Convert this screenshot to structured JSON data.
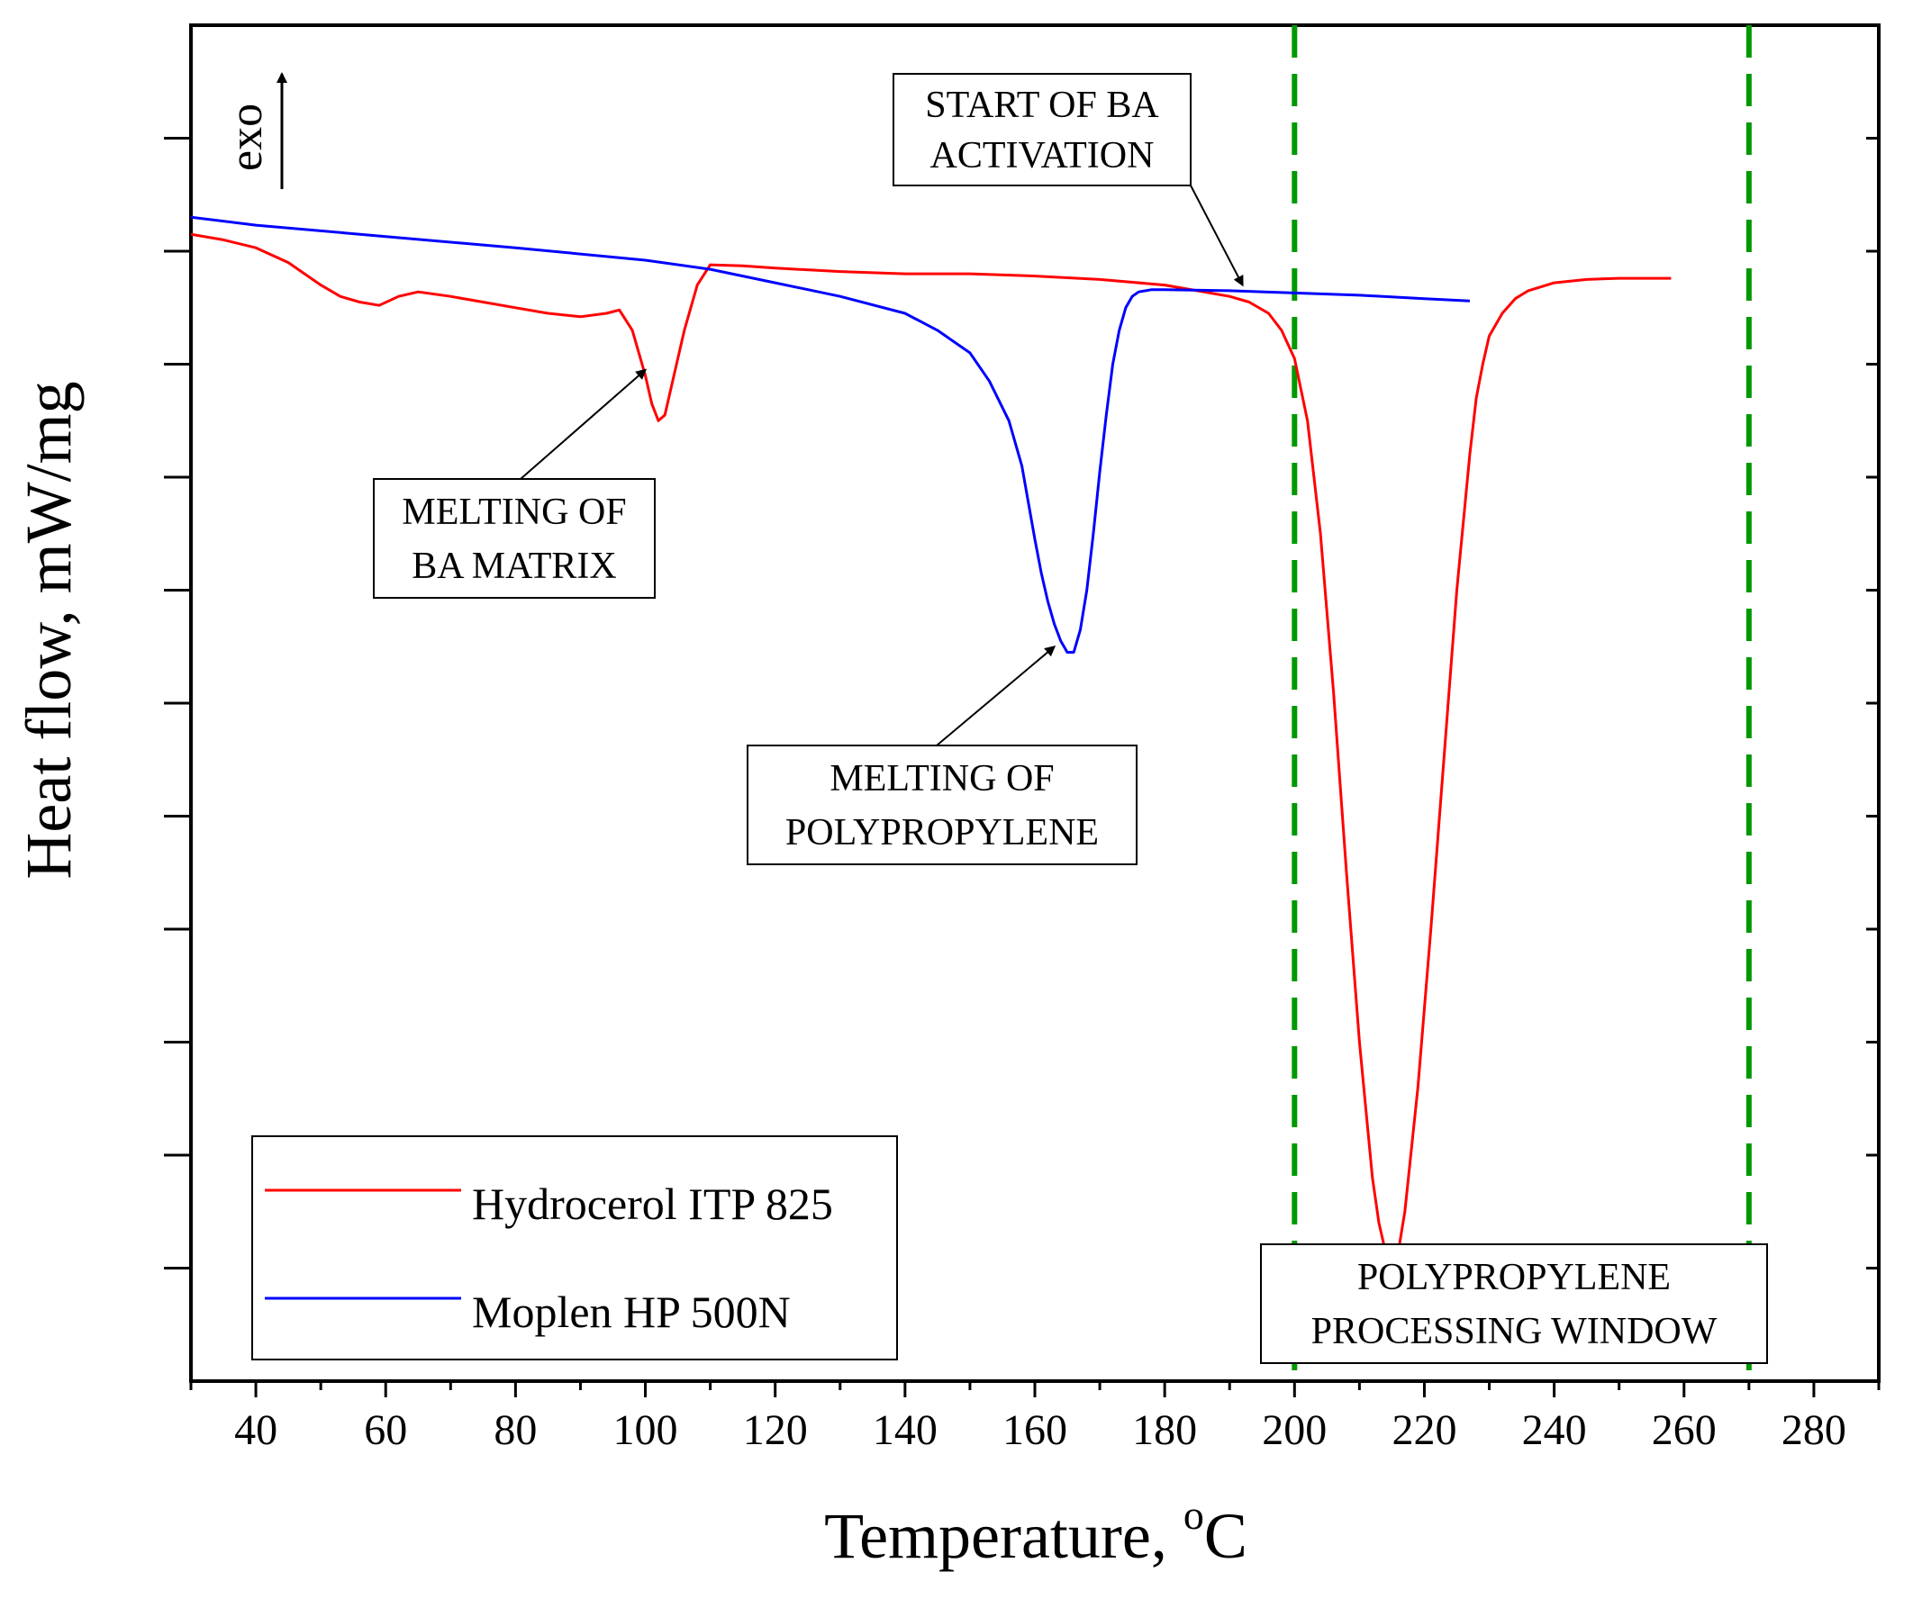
{
  "chart_data": {
    "type": "line",
    "xlabel": "Temperature, ",
    "xlabel_unit": "C",
    "xlabel_unit_sup": "o",
    "ylabel": "Heat flow, mW/mg",
    "xlim": [
      30,
      290
    ],
    "ylim": [
      -12,
      0
    ],
    "xticks": [
      40,
      60,
      80,
      100,
      120,
      140,
      160,
      180,
      200,
      220,
      240,
      260,
      280
    ],
    "y_grid_values": [
      -1,
      -2,
      -3,
      -4,
      -5,
      -6,
      -7,
      -8,
      -9,
      -10,
      -11
    ],
    "exo_label": "exo",
    "grid": false,
    "legend_placement": "bottom-left",
    "series": [
      {
        "name": "Hydrocerol ITP 825",
        "color": "#ff0000",
        "x": [
          30,
          35,
          40,
          45,
          50,
          53,
          56,
          59,
          62,
          65,
          70,
          75,
          80,
          85,
          90,
          94,
          96,
          98,
          100,
          101,
          102,
          103,
          104,
          106,
          108,
          110,
          115,
          120,
          130,
          140,
          150,
          160,
          170,
          180,
          185,
          190,
          193,
          196,
          198,
          200,
          202,
          204,
          206,
          208,
          210,
          212,
          213,
          214,
          215,
          216,
          217,
          219,
          221,
          223,
          225,
          227,
          228,
          229,
          230,
          232,
          234,
          236,
          240,
          245,
          250,
          255,
          258
        ],
        "y": [
          -1.85,
          -1.9,
          -1.97,
          -2.1,
          -2.3,
          -2.4,
          -2.45,
          -2.48,
          -2.4,
          -2.36,
          -2.4,
          -2.45,
          -2.5,
          -2.55,
          -2.58,
          -2.55,
          -2.52,
          -2.7,
          -3.1,
          -3.35,
          -3.5,
          -3.45,
          -3.2,
          -2.7,
          -2.3,
          -2.12,
          -2.13,
          -2.15,
          -2.18,
          -2.2,
          -2.2,
          -2.22,
          -2.25,
          -2.3,
          -2.35,
          -2.4,
          -2.45,
          -2.55,
          -2.7,
          -2.95,
          -3.5,
          -4.5,
          -5.9,
          -7.5,
          -9.0,
          -10.2,
          -10.6,
          -10.85,
          -10.95,
          -10.85,
          -10.5,
          -9.4,
          -8.0,
          -6.5,
          -5.0,
          -3.8,
          -3.3,
          -3.0,
          -2.75,
          -2.55,
          -2.42,
          -2.35,
          -2.28,
          -2.25,
          -2.24,
          -2.24,
          -2.24
        ]
      },
      {
        "name": "Moplen HP 500N",
        "color": "#0000ff",
        "x": [
          30,
          40,
          60,
          80,
          100,
          110,
          120,
          130,
          140,
          145,
          150,
          153,
          156,
          158,
          160,
          161,
          162,
          163,
          164,
          165,
          166,
          167,
          168,
          169,
          170,
          171,
          172,
          173,
          174,
          175,
          176,
          178,
          180,
          190,
          200,
          210,
          220,
          227
        ],
        "y": [
          -1.7,
          -1.77,
          -1.87,
          -1.97,
          -2.08,
          -2.16,
          -2.28,
          -2.4,
          -2.55,
          -2.7,
          -2.9,
          -3.15,
          -3.5,
          -3.9,
          -4.55,
          -4.85,
          -5.1,
          -5.3,
          -5.45,
          -5.55,
          -5.55,
          -5.35,
          -5.0,
          -4.5,
          -3.95,
          -3.45,
          -3.0,
          -2.7,
          -2.5,
          -2.4,
          -2.36,
          -2.34,
          -2.34,
          -2.35,
          -2.37,
          -2.39,
          -2.42,
          -2.44
        ]
      }
    ],
    "vlines": [
      {
        "x": 200,
        "color": "#009900",
        "style": "dashed"
      },
      {
        "x": 270,
        "color": "#009900",
        "style": "dashed"
      }
    ],
    "annotations": [
      {
        "lines": [
          "START OF BA",
          "ACTIVATION"
        ],
        "arrow_to": {
          "x": 192,
          "y": -2.3
        }
      },
      {
        "lines": [
          "MELTING OF",
          "BA MATRIX"
        ],
        "arrow_to": {
          "x": 100,
          "y": -3.05
        }
      },
      {
        "lines": [
          "MELTING OF",
          "POLYPROPYLENE"
        ],
        "arrow_to": {
          "x": 163,
          "y": -5.5
        }
      },
      {
        "lines": [
          "POLYPROPYLENE",
          "PROCESSING WINDOW"
        ]
      }
    ]
  }
}
